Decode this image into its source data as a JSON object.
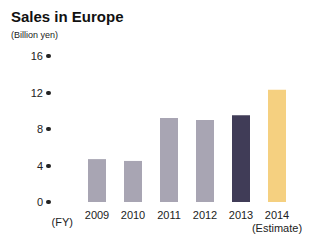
{
  "chart_data": {
    "type": "bar",
    "title": "Sales in Europe",
    "subtitle": "(Billion yen)",
    "x_label": "(FY)",
    "categories": [
      "2009",
      "2010",
      "2011",
      "2012",
      "2013",
      "2014\n(Estimate)"
    ],
    "values": [
      4.7,
      4.5,
      9.2,
      9.0,
      9.5,
      12.3
    ],
    "colors": [
      "#a8a5b3",
      "#a8a5b3",
      "#a8a5b3",
      "#a8a5b3",
      "#403c57",
      "#f5d080"
    ],
    "ylim": [
      0,
      16
    ],
    "yticks": [
      0,
      4,
      8,
      12,
      16
    ],
    "grid": false
  }
}
